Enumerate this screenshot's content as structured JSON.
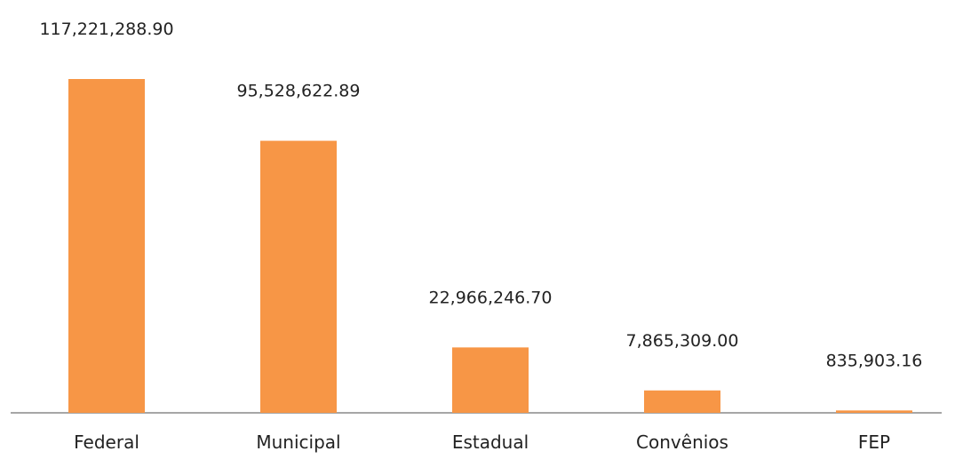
{
  "chart_data": {
    "type": "bar",
    "categories": [
      "Federal",
      "Municipal",
      "Estadual",
      "Convênios",
      "FEP"
    ],
    "values": [
      117221288.9,
      95528622.89,
      22966246.7,
      7865309.0,
      835903.16
    ],
    "data_labels": [
      "117,221,288.90",
      "95,528,622.89",
      "22,966,246.70",
      "7,865,309.00",
      "835,903.16"
    ],
    "title": "",
    "xlabel": "",
    "ylabel": "",
    "ylim": [
      0,
      117221288.9
    ],
    "grid": false,
    "legend": "none",
    "colors": {
      "bar": "#F79646",
      "axis": "#A6A6A6",
      "text": "#222222"
    }
  }
}
